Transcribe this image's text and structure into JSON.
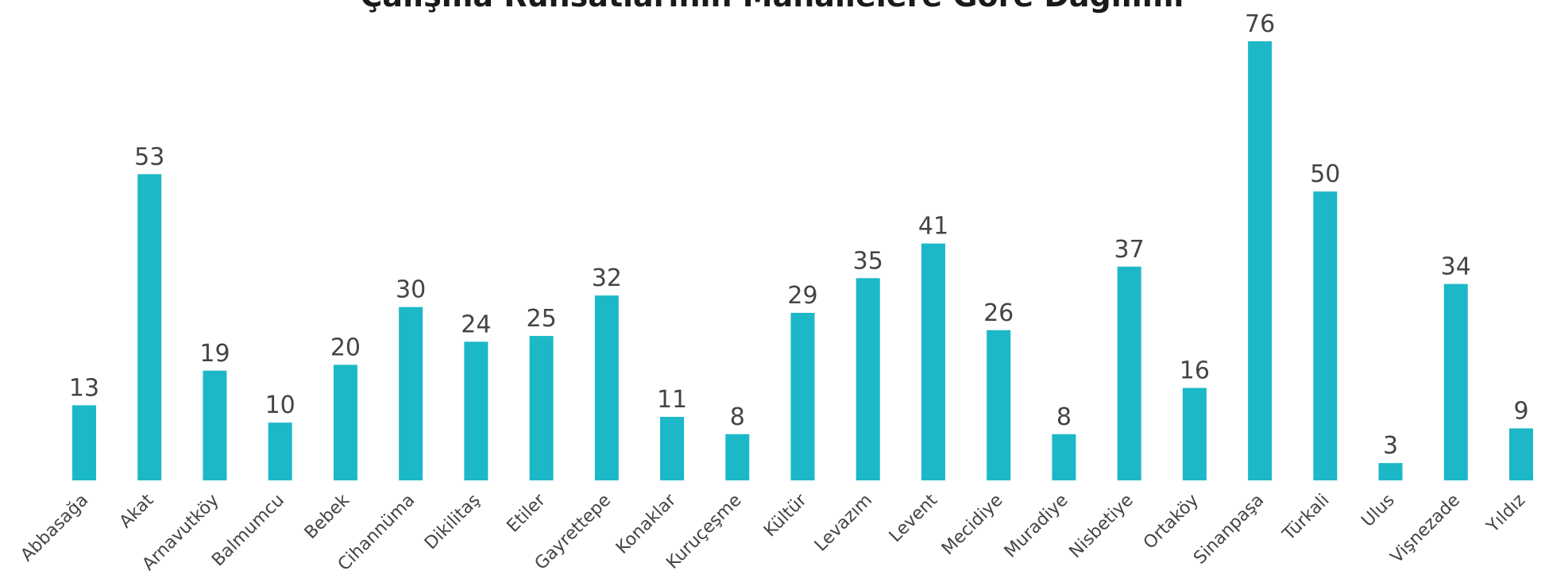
{
  "chart_data": {
    "type": "bar",
    "title": "Çalışma Ruhsatlarının Mahallelere Göre Dağılımı",
    "categories": [
      "Abbasağa",
      "Akat",
      "Arnavutköy",
      "Balmumcu",
      "Bebek",
      "Cihannüma",
      "Dikilitaş",
      "Etiler",
      "Gayrettepe",
      "Konaklar",
      "Kuruçeşme",
      "Kültür",
      "Levazım",
      "Levent",
      "Mecidiye",
      "Muradiye",
      "Nisbetiye",
      "Ortaköy",
      "Sinanpaşa",
      "Türkali",
      "Ulus",
      "Vişnezade",
      "Yıldız"
    ],
    "values": [
      13,
      53,
      19,
      10,
      20,
      30,
      24,
      25,
      32,
      11,
      8,
      29,
      35,
      41,
      26,
      8,
      37,
      16,
      76,
      50,
      3,
      34,
      9
    ],
    "color": "#1cb8c7"
  }
}
